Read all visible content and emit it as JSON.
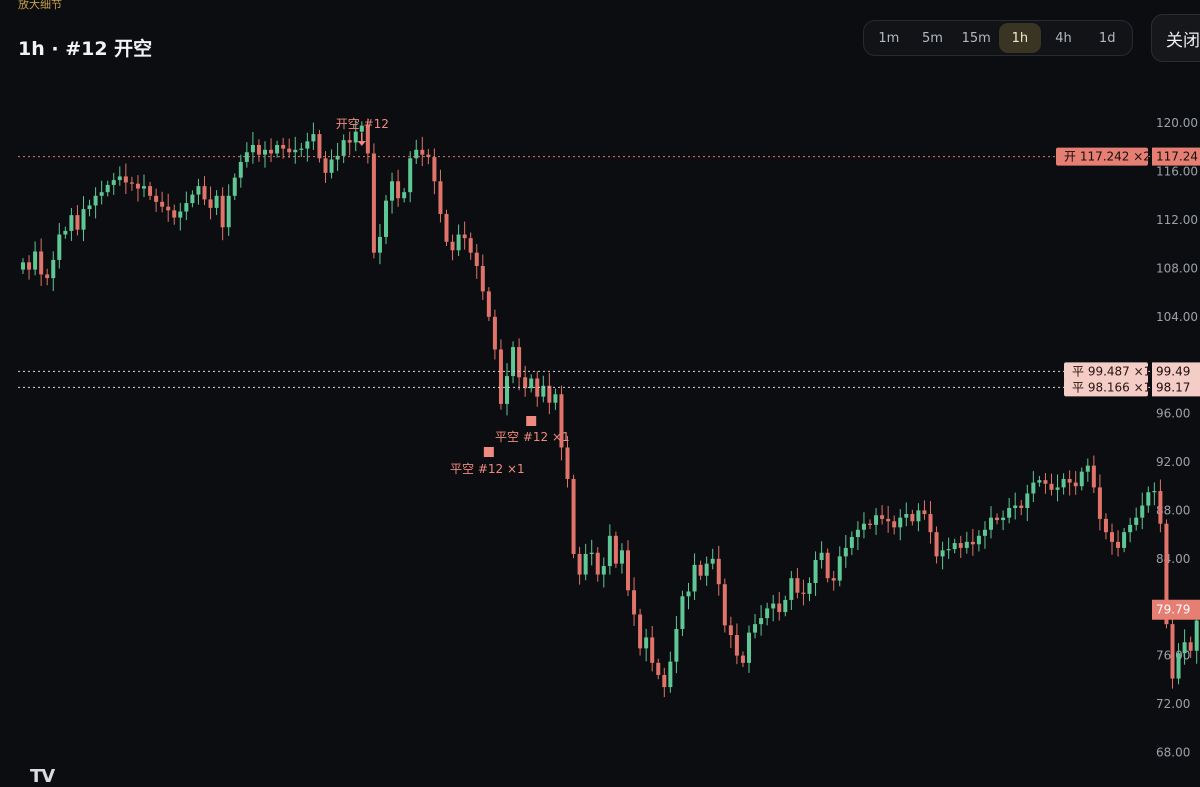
{
  "header": {
    "zoom_hint": "放大细节",
    "title": "1h · #12 开空",
    "timeframes": [
      "1m",
      "5m",
      "15m",
      "1h",
      "4h",
      "1d"
    ],
    "active_timeframe": "1h",
    "close_label": "关闭"
  },
  "logo_text": "TV",
  "colors": {
    "up": "#5fc795",
    "down": "#e0746a",
    "background": "#0c0d10",
    "axis_text": "#9ba0a9",
    "marker": "#f08a80",
    "exit_tag_bg": "#f4cdc7",
    "price_tag_bg": "#e57e73"
  },
  "chart_data": {
    "type": "candlestick",
    "ylim": [
      68,
      122
    ],
    "yticks": [
      "120.00",
      "116.00",
      "112.00",
      "108.00",
      "104.00",
      "96.00",
      "92.00",
      "88.00",
      "84.00",
      "76.00",
      "72.00",
      "68.00"
    ],
    "closes": [
      108.5,
      107.9,
      109.4,
      107.5,
      107.2,
      108.7,
      110.8,
      111.1,
      112.4,
      111.2,
      112.9,
      113.2,
      114.0,
      114.3,
      114.9,
      115.3,
      115.6,
      115.1,
      115.0,
      114.6,
      114.8,
      114.0,
      113.5,
      113.1,
      112.8,
      112.2,
      112.7,
      113.4,
      114.1,
      114.8,
      113.7,
      113.0,
      114.0,
      111.4,
      114.0,
      115.5,
      116.8,
      117.6,
      118.2,
      117.4,
      117.8,
      117.5,
      118.2,
      117.9,
      117.6,
      117.8,
      117.9,
      118.5,
      119.1,
      117.1,
      115.9,
      117.0,
      117.3,
      118.6,
      118.4,
      119.3,
      119.8,
      117.5,
      109.3,
      110.6,
      113.6,
      115.2,
      113.8,
      114.3,
      117.1,
      117.8,
      117.4,
      117.2,
      115.2,
      112.5,
      110.2,
      109.5,
      110.8,
      110.5,
      109.3,
      108.2,
      106.1,
      104.0,
      101.3,
      96.8,
      99.1,
      101.5,
      99.0,
      98.1,
      98.9,
      97.4,
      98.3,
      96.9,
      97.6,
      93.2,
      90.6,
      84.4,
      82.7,
      84.4,
      84.5,
      82.7,
      83.4,
      85.9,
      83.6,
      84.7,
      81.4,
      79.4,
      76.6,
      77.5,
      75.4,
      74.4,
      73.4,
      75.5,
      78.2,
      80.9,
      81.3,
      83.5,
      82.6,
      83.6,
      84.0,
      81.9,
      78.5,
      77.7,
      76.0,
      75.4,
      77.9,
      78.6,
      79.1,
      79.9,
      80.3,
      79.6,
      80.6,
      82.4,
      81.2,
      81.1,
      82.0,
      83.9,
      84.5,
      82.4,
      82.2,
      84.2,
      84.9,
      85.8,
      86.4,
      86.9,
      86.8,
      87.6,
      87.3,
      87.1,
      86.6,
      87.4,
      87.7,
      87.1,
      88.0,
      87.7,
      86.2,
      84.2,
      84.7,
      84.8,
      85.3,
      84.9,
      85.4,
      85.2,
      85.9,
      86.4,
      87.4,
      87.2,
      87.4,
      88.2,
      88.4,
      88.2,
      89.4,
      90.3,
      90.5,
      90.2,
      89.7,
      89.9,
      90.6,
      90.3,
      90.0,
      91.2,
      91.7,
      89.9,
      87.3,
      86.2,
      85.4,
      84.9,
      86.2,
      86.8,
      87.4,
      88.4,
      89.5,
      89.6,
      86.9,
      78.6,
      74.1,
      76.2,
      77.1,
      76.4,
      78.9,
      80.2,
      79.8
    ],
    "short_entry": {
      "label": "开空 #12",
      "price": 117.242
    },
    "exit_labels": [
      "平空 #12 ×1",
      "平空 #12 ×1"
    ],
    "price_lines": [
      {
        "tag": "开 117.242 ×2",
        "axis": "117.24",
        "value": 117.242
      },
      {
        "tag": "平 99.487 ×1",
        "axis": "99.49",
        "value": 99.487
      },
      {
        "tag": "平 98.166 ×1",
        "axis": "98.17",
        "value": 98.166
      }
    ],
    "last_price": {
      "axis": "79.79",
      "value": 79.79
    }
  }
}
